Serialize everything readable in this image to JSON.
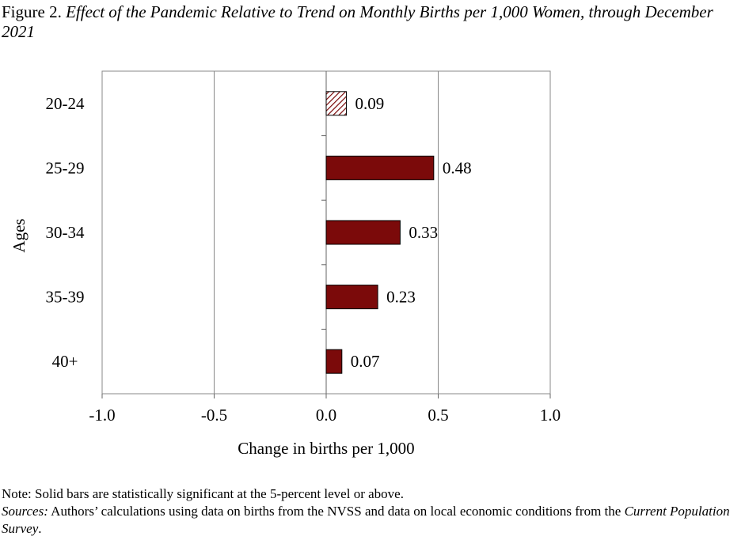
{
  "title": {
    "prefix": "Figure 2.",
    "main": "Effect of the Pandemic Relative to Trend on Monthly Births per 1,000 Women, through December 2021"
  },
  "chart_data": {
    "type": "bar",
    "orientation": "horizontal",
    "categories": [
      "20-24",
      "25-29",
      "30-34",
      "35-39",
      "40+"
    ],
    "values": [
      0.09,
      0.48,
      0.33,
      0.23,
      0.07
    ],
    "value_labels": [
      "0.09",
      "0.48",
      "0.33",
      "0.23",
      "0.07"
    ],
    "significant": [
      false,
      true,
      true,
      true,
      true
    ],
    "xlabel": "Change in births per 1,000",
    "ylabel": "Ages",
    "xlim": [
      -1.0,
      1.0
    ],
    "xticks": [
      -1.0,
      -0.5,
      0.0,
      0.5,
      1.0
    ],
    "xtick_labels": [
      "-1.0",
      "-0.5",
      "0.0",
      "0.5",
      "1.0"
    ],
    "grid": "vertical",
    "colors": {
      "bar": "#7b0a0a",
      "hatch": "#7b0a0a",
      "grid": "#888888"
    }
  },
  "notes": {
    "note": "Note: Solid bars are statistically significant at the 5-percent level or above.",
    "sources_label": "Sources:",
    "sources_text": " Authors’ calculations using data on births from the NVSS and data on local economic conditions from the ",
    "sources_italic": "Current Population Survey",
    "sources_end": "."
  }
}
